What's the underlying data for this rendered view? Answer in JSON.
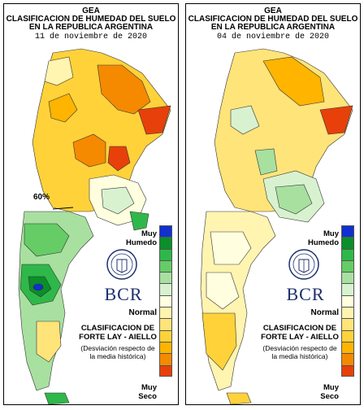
{
  "panels": [
    {
      "org": "GEA",
      "title_line1": "CLASIFICACION DE HUMEDAD DEL SUELO",
      "title_line2": "EN LA REPUBLICA ARGENTINA",
      "date": "11 de noviembre de 2020",
      "annotation": "60%"
    },
    {
      "org": "GEA",
      "title_line1": "CLASIFICACION DE HUMEDAD DEL SUELO",
      "title_line2": "EN LA REPUBLICA ARGENTINA",
      "date": "04 de noviembre de 2020"
    }
  ],
  "legend": {
    "top_label": "Muy\nHumedo",
    "mid_label": "Normal",
    "bottom_label": "Muy\nSeco",
    "classification": "CLASIFICACION DE\nFORTE LAY - AIELLO",
    "deviation": "(Desviación respecto de\nla media histórica)",
    "brand": "BCR",
    "colors": [
      "#1030d0",
      "#0a8f2a",
      "#2fb84a",
      "#66cc66",
      "#a8e0a0",
      "#d8f2d0",
      "#ffffe0",
      "#fff4b0",
      "#ffe47a",
      "#ffd23a",
      "#ffb400",
      "#f58a00",
      "#e8400a"
    ]
  }
}
